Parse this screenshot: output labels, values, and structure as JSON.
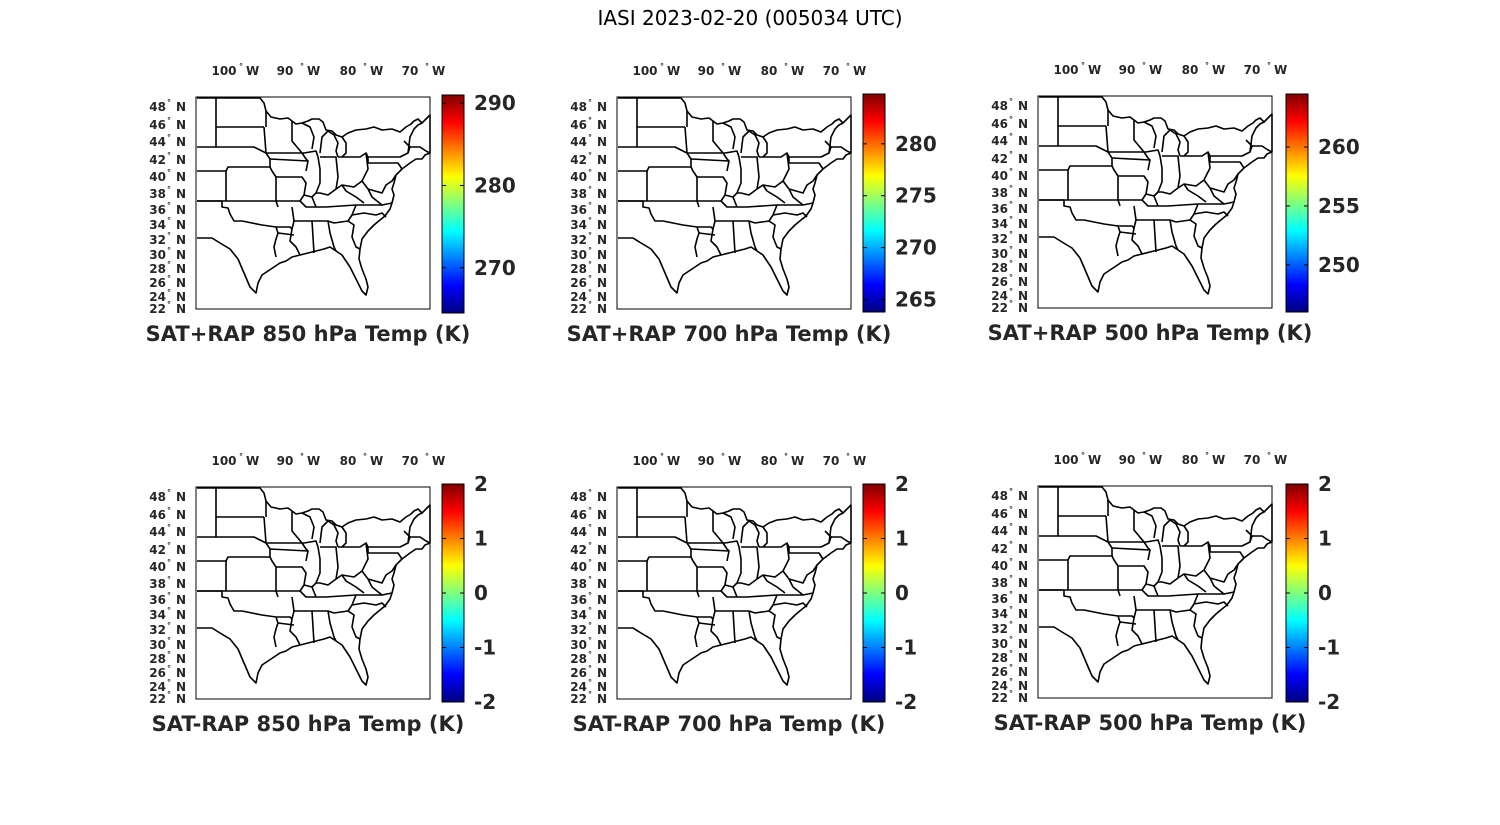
{
  "figure": {
    "title": "IASI 2023-02-20 (005034 UTC)"
  },
  "axes": {
    "lon_labels": [
      {
        "deg": "100",
        "hem": "W"
      },
      {
        "deg": "90",
        "hem": "W"
      },
      {
        "deg": "80",
        "hem": "W"
      },
      {
        "deg": "70",
        "hem": "W"
      }
    ],
    "lat_labels": [
      "48",
      "46",
      "44",
      "42",
      "40",
      "38",
      "36",
      "34",
      "32",
      "30",
      "28",
      "26",
      "24",
      "22"
    ],
    "lat_hem": "N",
    "degree_symbol": "°"
  },
  "colormap": {
    "name": "jet",
    "stops": [
      "#00007f",
      "#0000ff",
      "#007fff",
      "#00ffff",
      "#7fff7f",
      "#ffff00",
      "#ff7f00",
      "#ff0000",
      "#7f0000"
    ]
  },
  "panels": [
    {
      "title": "SAT+RAP 850 hPa Temp (K)",
      "colorbar": {
        "min": 264.5,
        "max": 291,
        "ticks": [
          "290",
          "280",
          "270"
        ],
        "tick_values": [
          290,
          280,
          270
        ]
      }
    },
    {
      "title": "SAT+RAP 700 hPa Temp (K)",
      "colorbar": {
        "min": 263.8,
        "max": 284.8,
        "ticks": [
          "280",
          "275",
          "270",
          "265"
        ],
        "tick_values": [
          280,
          275,
          270,
          265
        ]
      }
    },
    {
      "title": "SAT+RAP 500 hPa Temp (K)",
      "colorbar": {
        "min": 246,
        "max": 264.5,
        "ticks": [
          "260",
          "255",
          "250"
        ],
        "tick_values": [
          260,
          255,
          250
        ]
      }
    },
    {
      "title": "SAT-RAP 850 hPa Temp (K)",
      "colorbar": {
        "min": -2,
        "max": 2,
        "ticks": [
          "2",
          "1",
          "0",
          "-1",
          "-2"
        ],
        "tick_values": [
          2,
          1,
          0,
          -1,
          -2
        ]
      }
    },
    {
      "title": "SAT-RAP 700 hPa Temp (K)",
      "colorbar": {
        "min": -2,
        "max": 2,
        "ticks": [
          "2",
          "1",
          "0",
          "-1",
          "-2"
        ],
        "tick_values": [
          2,
          1,
          0,
          -1,
          -2
        ]
      }
    },
    {
      "title": "SAT-RAP 500 hPa Temp (K)",
      "colorbar": {
        "min": -2,
        "max": 2,
        "ticks": [
          "2",
          "1",
          "0",
          "-1",
          "-2"
        ],
        "tick_values": [
          2,
          1,
          0,
          -1,
          -2
        ]
      }
    }
  ]
}
